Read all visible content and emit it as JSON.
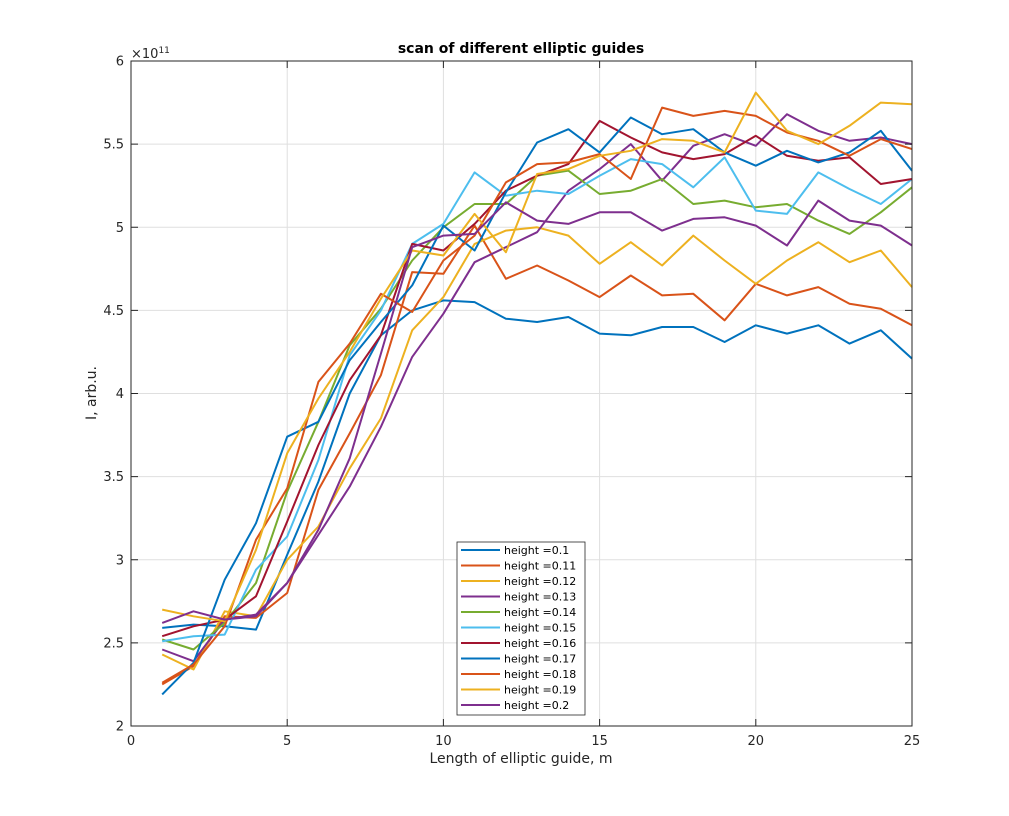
{
  "chart_data": {
    "type": "line",
    "title": "scan of different elliptic guides",
    "xlabel": "Length of elliptic guide, m",
    "ylabel": "I, arb.u.",
    "exponent_label": "×10",
    "exponent_power": "11",
    "xlim": [
      0,
      25
    ],
    "ylim": [
      2,
      6
    ],
    "xticks": [
      "0",
      "5",
      "10",
      "15",
      "20",
      "25"
    ],
    "yticks": [
      "2",
      "2.5",
      "3",
      "3.5",
      "4",
      "4.5",
      "5",
      "5.5",
      "6"
    ],
    "grid": true,
    "legend_position": "bottom-center",
    "x": [
      1,
      2,
      3,
      4,
      5,
      6,
      7,
      8,
      9,
      10,
      11,
      12,
      13,
      14,
      15,
      16,
      17,
      18,
      19,
      20,
      21,
      22,
      23,
      24,
      25
    ],
    "series": [
      {
        "name": "height =0.1",
        "color": "#0072BD",
        "values": [
          2.59,
          2.61,
          2.6,
          2.58,
          3.03,
          3.47,
          4.0,
          4.35,
          4.5,
          4.56,
          4.55,
          4.45,
          4.43,
          4.46,
          4.36,
          4.35,
          4.4,
          4.4,
          4.31,
          4.41,
          4.36,
          4.41,
          4.3,
          4.38,
          4.21
        ]
      },
      {
        "name": "height =0.11",
        "color": "#D95319",
        "values": [
          2.25,
          2.36,
          2.66,
          2.65,
          2.8,
          3.42,
          3.76,
          4.11,
          4.73,
          4.72,
          5.01,
          4.69,
          4.77,
          4.68,
          4.58,
          4.71,
          4.59,
          4.6,
          4.44,
          4.66,
          4.59,
          4.64,
          4.54,
          4.51,
          4.41
        ]
      },
      {
        "name": "height =0.12",
        "color": "#EDB120",
        "values": [
          2.43,
          2.34,
          2.69,
          2.66,
          3.0,
          3.2,
          3.55,
          3.85,
          4.38,
          4.58,
          4.9,
          4.98,
          5.0,
          4.95,
          4.78,
          4.91,
          4.77,
          4.95,
          4.8,
          4.66,
          4.8,
          4.91,
          4.79,
          4.86,
          4.64
        ]
      },
      {
        "name": "height =0.13",
        "color": "#7E2F8E",
        "values": [
          2.46,
          2.39,
          2.64,
          2.66,
          2.86,
          3.15,
          3.44,
          3.8,
          4.22,
          4.48,
          4.79,
          4.88,
          4.97,
          5.22,
          5.35,
          5.5,
          5.28,
          5.49,
          5.56,
          5.49,
          5.68,
          5.58,
          5.52,
          5.54,
          5.5
        ]
      },
      {
        "name": "height =0.14",
        "color": "#77AC30",
        "values": [
          2.52,
          2.46,
          2.62,
          2.86,
          3.41,
          3.83,
          4.29,
          4.51,
          4.8,
          5.0,
          5.14,
          5.14,
          5.31,
          5.34,
          5.2,
          5.22,
          5.29,
          5.14,
          5.16,
          5.12,
          5.14,
          5.04,
          4.96,
          5.09,
          5.24
        ]
      },
      {
        "name": "height =0.15",
        "color": "#4DBEEE",
        "values": [
          2.51,
          2.54,
          2.55,
          2.94,
          3.14,
          3.6,
          4.23,
          4.5,
          4.9,
          5.02,
          5.33,
          5.19,
          5.22,
          5.2,
          5.31,
          5.41,
          5.38,
          5.24,
          5.42,
          5.1,
          5.08,
          5.33,
          5.23,
          5.14,
          5.29
        ]
      },
      {
        "name": "height =0.16",
        "color": "#A2142F",
        "values": [
          2.54,
          2.6,
          2.64,
          2.78,
          3.23,
          3.69,
          4.08,
          4.35,
          4.9,
          4.86,
          5.02,
          5.22,
          5.31,
          5.38,
          5.64,
          5.54,
          5.45,
          5.41,
          5.44,
          5.55,
          5.43,
          5.4,
          5.42,
          5.26,
          5.29
        ]
      },
      {
        "name": "height =0.17",
        "color": "#0072BD",
        "values": [
          2.19,
          2.38,
          2.88,
          3.22,
          3.74,
          3.83,
          4.2,
          4.43,
          4.65,
          5.01,
          4.86,
          5.21,
          5.51,
          5.59,
          5.45,
          5.66,
          5.56,
          5.59,
          5.45,
          5.37,
          5.46,
          5.39,
          5.45,
          5.58,
          5.34
        ]
      },
      {
        "name": "height =0.18",
        "color": "#D95319",
        "values": [
          2.26,
          2.37,
          2.6,
          3.12,
          3.43,
          4.07,
          4.3,
          4.6,
          4.49,
          4.8,
          4.95,
          5.27,
          5.38,
          5.39,
          5.44,
          5.29,
          5.72,
          5.67,
          5.7,
          5.67,
          5.57,
          5.52,
          5.43,
          5.53,
          5.47
        ]
      },
      {
        "name": "height =0.19",
        "color": "#EDB120",
        "values": [
          2.7,
          2.66,
          2.63,
          3.06,
          3.64,
          3.97,
          4.25,
          4.57,
          4.86,
          4.83,
          5.08,
          4.85,
          5.32,
          5.35,
          5.43,
          5.46,
          5.53,
          5.52,
          5.45,
          5.81,
          5.58,
          5.5,
          5.61,
          5.75,
          5.74
        ]
      },
      {
        "name": "height =0.2",
        "color": "#7E2F8E",
        "values": [
          2.62,
          2.69,
          2.64,
          2.67,
          2.86,
          3.18,
          3.61,
          4.24,
          4.88,
          4.95,
          4.96,
          5.15,
          5.04,
          5.02,
          5.09,
          5.09,
          4.98,
          5.05,
          5.06,
          5.01,
          4.89,
          5.16,
          5.04,
          5.01,
          4.89
        ]
      }
    ]
  }
}
